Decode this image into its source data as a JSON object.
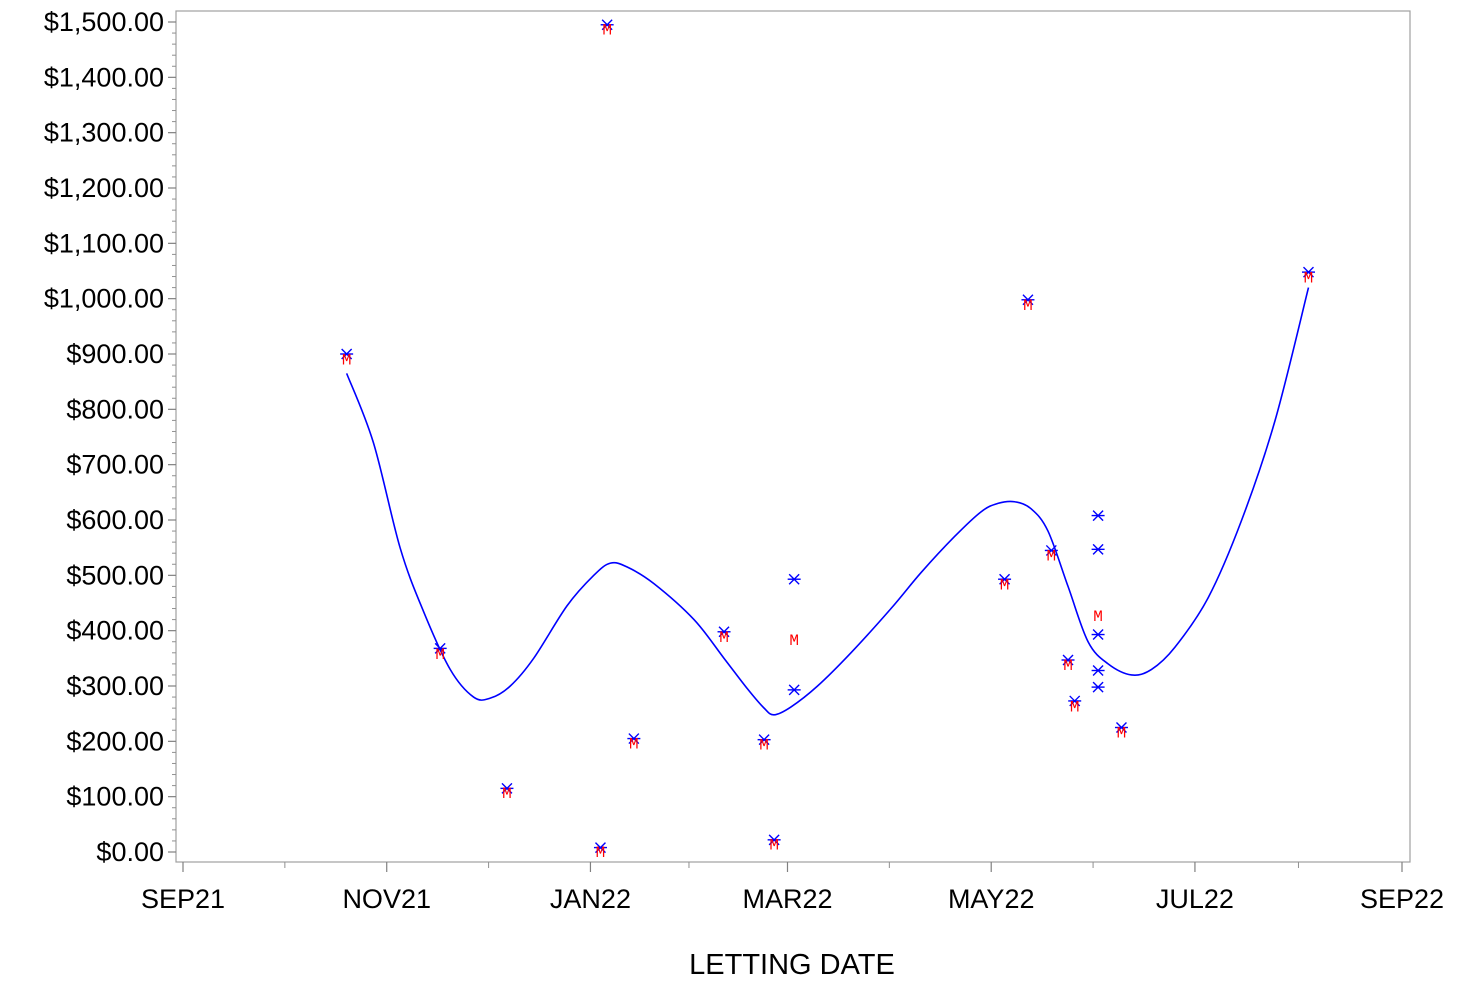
{
  "chart_data": {
    "type": "scatter",
    "xlabel": "LETTING DATE",
    "ylabel": "",
    "ylim": [
      0,
      1500
    ],
    "xlim": [
      "2021-09-01",
      "2022-09-01"
    ],
    "y_ticks": [
      0,
      100,
      200,
      300,
      400,
      500,
      600,
      700,
      800,
      900,
      1000,
      1100,
      1200,
      1300,
      1400,
      1500
    ],
    "y_tick_labels": [
      "$0.00",
      "$100.00",
      "$200.00",
      "$300.00",
      "$400.00",
      "$500.00",
      "$600.00",
      "$700.00",
      "$800.00",
      "$900.00",
      "$1,000.00",
      "$1,100.00",
      "$1,200.00",
      "$1,300.00",
      "$1,400.00",
      "$1,500.00"
    ],
    "x_ticks": [
      "2021-09-01",
      "2021-11-01",
      "2022-01-01",
      "2022-03-01",
      "2022-05-01",
      "2022-07-01",
      "2022-09-01"
    ],
    "x_tick_labels": [
      "SEP21",
      "NOV21",
      "JAN22",
      "MAR22",
      "MAY22",
      "JUL22",
      "SEP22"
    ],
    "grid": false,
    "series": [
      {
        "marker": "star",
        "color": "#0000ff",
        "points": [
          {
            "x": "2021-10-20",
            "y": 900
          },
          {
            "x": "2021-11-17",
            "y": 368
          },
          {
            "x": "2021-12-07",
            "y": 115
          },
          {
            "x": "2022-01-04",
            "y": 8
          },
          {
            "x": "2022-01-06",
            "y": 1495
          },
          {
            "x": "2022-01-14",
            "y": 205
          },
          {
            "x": "2022-02-10",
            "y": 398
          },
          {
            "x": "2022-02-22",
            "y": 203
          },
          {
            "x": "2022-02-25",
            "y": 22
          },
          {
            "x": "2022-03-03",
            "y": 493
          },
          {
            "x": "2022-03-03",
            "y": 293
          },
          {
            "x": "2022-05-05",
            "y": 493
          },
          {
            "x": "2022-05-12",
            "y": 998
          },
          {
            "x": "2022-05-19",
            "y": 545
          },
          {
            "x": "2022-05-24",
            "y": 347
          },
          {
            "x": "2022-05-26",
            "y": 273
          },
          {
            "x": "2022-06-02",
            "y": 608
          },
          {
            "x": "2022-06-02",
            "y": 547
          },
          {
            "x": "2022-06-02",
            "y": 393
          },
          {
            "x": "2022-06-02",
            "y": 328
          },
          {
            "x": "2022-06-02",
            "y": 298
          },
          {
            "x": "2022-06-09",
            "y": 225
          },
          {
            "x": "2022-08-04",
            "y": 1048
          }
        ]
      },
      {
        "marker": "letter",
        "marker_label": "M",
        "color": "#ff0000",
        "points": [
          {
            "x": "2021-10-20",
            "y": 892
          },
          {
            "x": "2021-11-17",
            "y": 360
          },
          {
            "x": "2021-12-07",
            "y": 108
          },
          {
            "x": "2022-01-04",
            "y": 2
          },
          {
            "x": "2022-01-06",
            "y": 1488
          },
          {
            "x": "2022-01-14",
            "y": 198
          },
          {
            "x": "2022-02-10",
            "y": 390
          },
          {
            "x": "2022-02-22",
            "y": 196
          },
          {
            "x": "2022-02-25",
            "y": 15
          },
          {
            "x": "2022-03-03",
            "y": 385
          },
          {
            "x": "2022-05-05",
            "y": 485
          },
          {
            "x": "2022-05-12",
            "y": 990
          },
          {
            "x": "2022-05-19",
            "y": 538
          },
          {
            "x": "2022-05-24",
            "y": 340
          },
          {
            "x": "2022-05-26",
            "y": 265
          },
          {
            "x": "2022-06-02",
            "y": 428
          },
          {
            "x": "2022-06-09",
            "y": 218
          },
          {
            "x": "2022-08-04",
            "y": 1040
          }
        ]
      },
      {
        "type": "line",
        "color": "#0000ff",
        "points": [
          {
            "x": "2021-10-20",
            "y": 865
          },
          {
            "x": "2021-10-28",
            "y": 740
          },
          {
            "x": "2021-11-05",
            "y": 550
          },
          {
            "x": "2021-11-12",
            "y": 435
          },
          {
            "x": "2021-11-20",
            "y": 330
          },
          {
            "x": "2021-11-27",
            "y": 280
          },
          {
            "x": "2021-12-02",
            "y": 278
          },
          {
            "x": "2021-12-08",
            "y": 300
          },
          {
            "x": "2021-12-15",
            "y": 350
          },
          {
            "x": "2021-12-25",
            "y": 445
          },
          {
            "x": "2022-01-02",
            "y": 500
          },
          {
            "x": "2022-01-07",
            "y": 522
          },
          {
            "x": "2022-01-12",
            "y": 515
          },
          {
            "x": "2022-01-20",
            "y": 485
          },
          {
            "x": "2022-02-01",
            "y": 420
          },
          {
            "x": "2022-02-10",
            "y": 350
          },
          {
            "x": "2022-02-17",
            "y": 295
          },
          {
            "x": "2022-02-22",
            "y": 260
          },
          {
            "x": "2022-02-25",
            "y": 248
          },
          {
            "x": "2022-03-02",
            "y": 262
          },
          {
            "x": "2022-03-10",
            "y": 300
          },
          {
            "x": "2022-03-20",
            "y": 360
          },
          {
            "x": "2022-04-01",
            "y": 440
          },
          {
            "x": "2022-04-10",
            "y": 505
          },
          {
            "x": "2022-04-20",
            "y": 570
          },
          {
            "x": "2022-04-28",
            "y": 615
          },
          {
            "x": "2022-05-03",
            "y": 630
          },
          {
            "x": "2022-05-08",
            "y": 633
          },
          {
            "x": "2022-05-13",
            "y": 620
          },
          {
            "x": "2022-05-18",
            "y": 580
          },
          {
            "x": "2022-05-24",
            "y": 480
          },
          {
            "x": "2022-05-30",
            "y": 380
          },
          {
            "x": "2022-06-05",
            "y": 340
          },
          {
            "x": "2022-06-12",
            "y": 320
          },
          {
            "x": "2022-06-18",
            "y": 330
          },
          {
            "x": "2022-06-25",
            "y": 370
          },
          {
            "x": "2022-07-05",
            "y": 460
          },
          {
            "x": "2022-07-15",
            "y": 600
          },
          {
            "x": "2022-07-25",
            "y": 780
          },
          {
            "x": "2022-08-04",
            "y": 1020
          }
        ]
      }
    ]
  }
}
